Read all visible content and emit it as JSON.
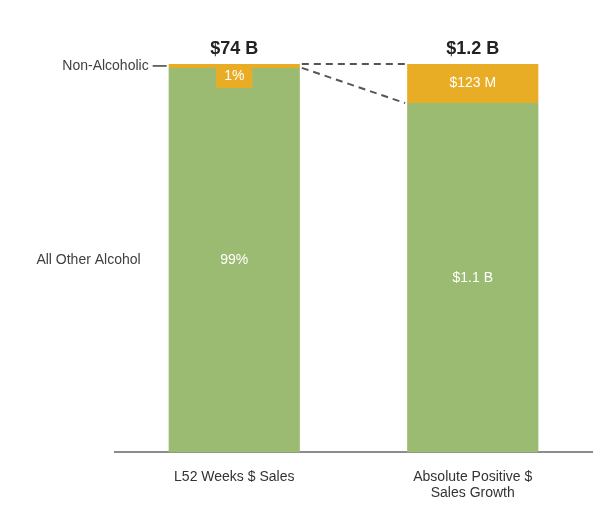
{
  "chart_data": {
    "type": "bar",
    "stacked": true,
    "data_labels": true,
    "tick_labels": "x",
    "grid": false,
    "categories": [
      "L52 Weeks $ Sales",
      "Absolute Positive $ Sales Growth"
    ],
    "total_labels": [
      "$74 B",
      "$1.2 B"
    ],
    "ylim": [
      0,
      100
    ],
    "y2lim": [
      0,
      1223000000
    ],
    "series": [
      {
        "name": "All Other Alcohol",
        "color": "#9bbb73",
        "values": [
          99,
          null
        ],
        "value_labels": [
          "99%",
          null
        ]
      },
      {
        "name": "Non-Alcoholic",
        "color": "#e8ad25",
        "values": [
          1,
          null
        ],
        "value_labels": [
          "1%",
          null
        ]
      },
      {
        "name": "All Other Alcohol",
        "color": "#9bbb73",
        "axis": "y2",
        "values": [
          null,
          1100000000
        ],
        "value_labels": [
          null,
          "$1.1 B"
        ]
      },
      {
        "name": "Non-Alcoholic",
        "color": "#e8ad25",
        "axis": "y2",
        "values": [
          null,
          123000000
        ],
        "value_labels": [
          null,
          "$123 M"
        ]
      }
    ]
  }
}
